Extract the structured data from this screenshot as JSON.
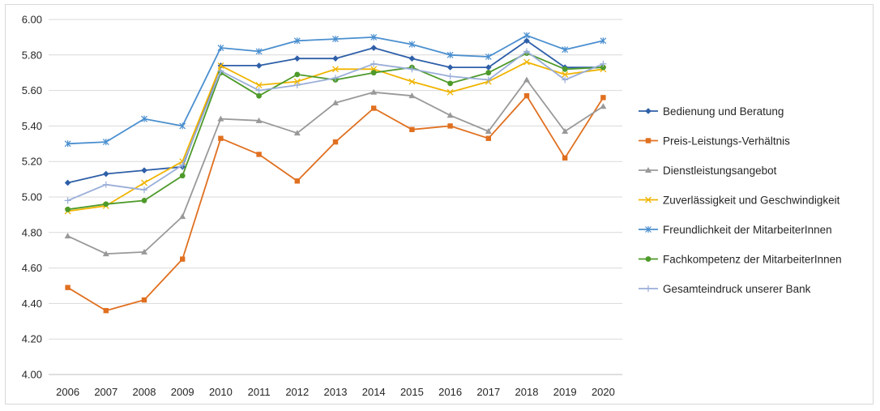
{
  "chart_data": {
    "type": "line",
    "title": "",
    "xlabel": "",
    "ylabel": "",
    "ylim": [
      4.0,
      6.0
    ],
    "yticks": [
      "4.00",
      "4.20",
      "4.40",
      "4.60",
      "4.80",
      "5.00",
      "5.20",
      "5.40",
      "5.60",
      "5.80",
      "6.00"
    ],
    "x": [
      "2006",
      "2007",
      "2008",
      "2009",
      "2010",
      "2011",
      "2012",
      "2013",
      "2014",
      "2015",
      "2016",
      "2017",
      "2018",
      "2019",
      "2020"
    ],
    "grid": "horizontal",
    "legend_position": "right",
    "series": [
      {
        "name": "Bedienung und Beratung",
        "color": "#2e5fa8",
        "marker": "diamond",
        "values": [
          5.08,
          5.13,
          5.15,
          5.17,
          5.74,
          5.74,
          5.78,
          5.78,
          5.84,
          5.78,
          5.73,
          5.73,
          5.88,
          5.73,
          5.73
        ]
      },
      {
        "name": "Preis-Leistungs-Verhältnis",
        "color": "#e07020",
        "marker": "square",
        "values": [
          4.49,
          4.36,
          4.42,
          4.65,
          5.33,
          5.24,
          5.09,
          5.31,
          5.5,
          5.38,
          5.4,
          5.33,
          5.57,
          5.22,
          5.56
        ]
      },
      {
        "name": "Dienstleistungsangebot",
        "color": "#999999",
        "marker": "triangle",
        "values": [
          4.78,
          4.68,
          4.69,
          4.89,
          5.44,
          5.43,
          5.36,
          5.53,
          5.59,
          5.57,
          5.46,
          5.37,
          5.66,
          5.37,
          5.51
        ]
      },
      {
        "name": "Zuverlässigkeit und Geschwindigkeit",
        "color": "#f0b400",
        "marker": "x",
        "values": [
          4.92,
          4.95,
          5.08,
          5.2,
          5.74,
          5.63,
          5.65,
          5.72,
          5.72,
          5.65,
          5.59,
          5.65,
          5.76,
          5.69,
          5.72
        ]
      },
      {
        "name": "Freundlichkeit der MitarbeiterInnen",
        "color": "#4a8fcf",
        "marker": "star",
        "values": [
          5.3,
          5.31,
          5.44,
          5.4,
          5.84,
          5.82,
          5.88,
          5.89,
          5.9,
          5.86,
          5.8,
          5.79,
          5.91,
          5.83,
          5.88
        ]
      },
      {
        "name": "Fachkompetenz der MitarbeiterInnen",
        "color": "#4e9a2a",
        "marker": "circle",
        "values": [
          4.93,
          4.96,
          4.98,
          5.12,
          5.7,
          5.57,
          5.69,
          5.66,
          5.7,
          5.73,
          5.64,
          5.7,
          5.81,
          5.72,
          5.73
        ]
      },
      {
        "name": "Gesamteindruck unserer Bank",
        "color": "#9aaed8",
        "marker": "plus",
        "values": [
          4.98,
          5.07,
          5.04,
          5.18,
          5.71,
          5.6,
          5.63,
          5.67,
          5.75,
          5.72,
          5.68,
          5.66,
          5.82,
          5.66,
          5.75
        ]
      }
    ]
  }
}
